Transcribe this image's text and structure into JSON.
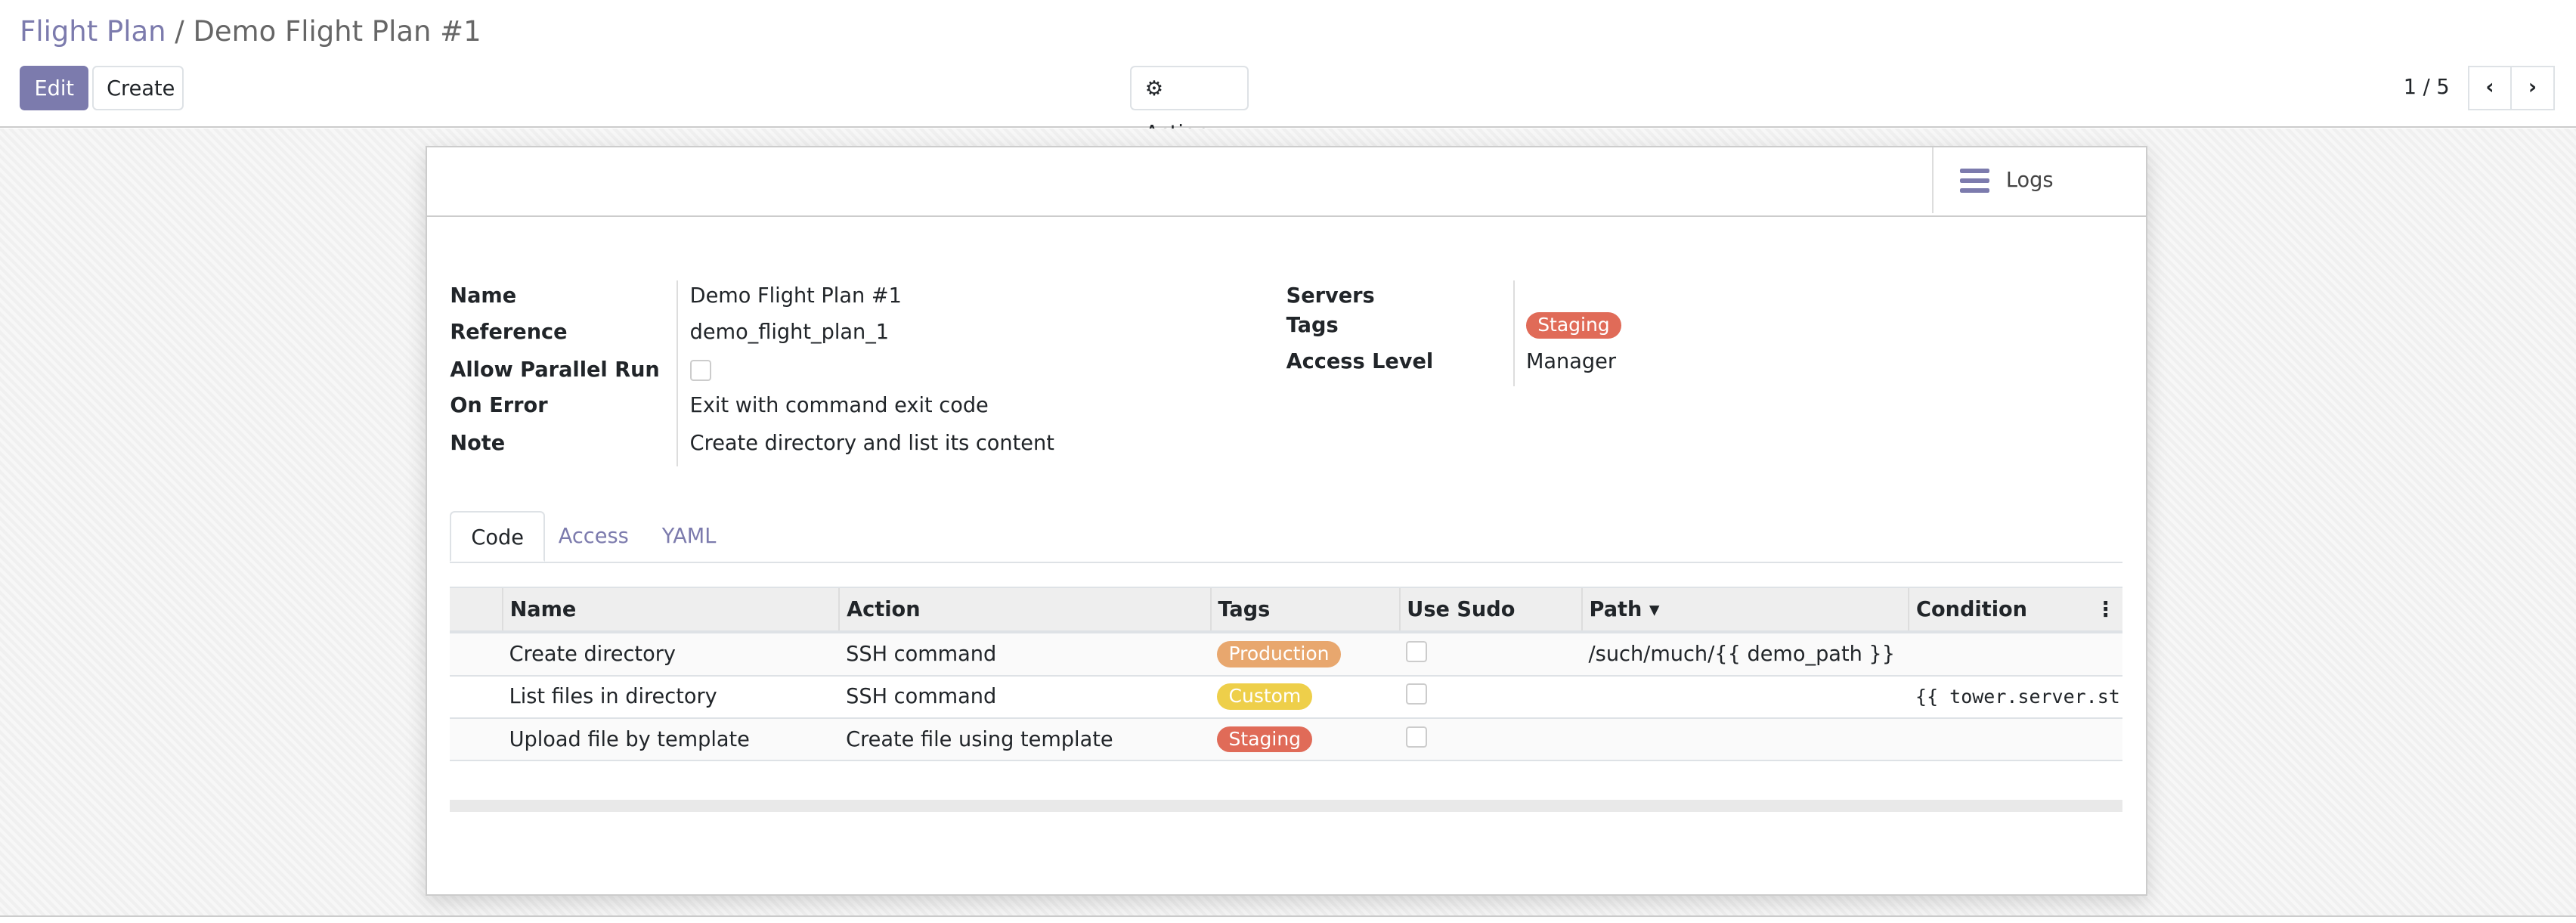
{
  "breadcrumb": {
    "parent": "Flight Plan",
    "separator": "/",
    "current": "Demo Flight Plan #1"
  },
  "toolbar": {
    "edit_label": "Edit",
    "create_label": "Create",
    "action_label": "Action",
    "action_icon": "gear-icon"
  },
  "pager": {
    "text": "1 / 5",
    "prev_icon": "chevron-left-icon",
    "next_icon": "chevron-right-icon"
  },
  "header": {
    "logs_label": "Logs",
    "logs_icon": "bars-icon"
  },
  "fields": {
    "name": {
      "label": "Name",
      "value": "Demo Flight Plan #1"
    },
    "reference": {
      "label": "Reference",
      "value": "demo_flight_plan_1"
    },
    "allow_parallel": {
      "label": "Allow Parallel Run",
      "checked": false
    },
    "on_error": {
      "label": "On Error",
      "value": "Exit with command exit code"
    },
    "note": {
      "label": "Note",
      "value": "Create directory and list its content"
    },
    "servers": {
      "label": "Servers"
    },
    "tags": {
      "label": "Tags",
      "values": [
        {
          "text": "Staging",
          "color": "#e06b58"
        }
      ]
    },
    "access_level": {
      "label": "Access Level",
      "value": "Manager"
    }
  },
  "tabs": [
    {
      "label": "Code",
      "active": true
    },
    {
      "label": "Access",
      "active": false
    },
    {
      "label": "YAML",
      "active": false
    }
  ],
  "table": {
    "columns": [
      "Name",
      "Action",
      "Tags",
      "Use Sudo",
      "Path",
      "Condition"
    ],
    "sort_indicator": "▾",
    "rows": [
      {
        "name": "Create directory",
        "action": "SSH command",
        "tag": "Production",
        "tag_color": "#e8a76e",
        "use_sudo": false,
        "path": "/such/much/{{ demo_path }}",
        "condition": ""
      },
      {
        "name": "List files in directory",
        "action": "SSH command",
        "tag": "Custom",
        "tag_color": "#eecf4a",
        "use_sudo": false,
        "path": "",
        "condition": "{{ tower.server.st"
      },
      {
        "name": "Upload file by template",
        "action": "Create file using template",
        "tag": "Staging",
        "tag_color": "#e06b58",
        "use_sudo": false,
        "path": "",
        "condition": ""
      }
    ]
  },
  "colors": {
    "accent": "#7c7bad"
  }
}
